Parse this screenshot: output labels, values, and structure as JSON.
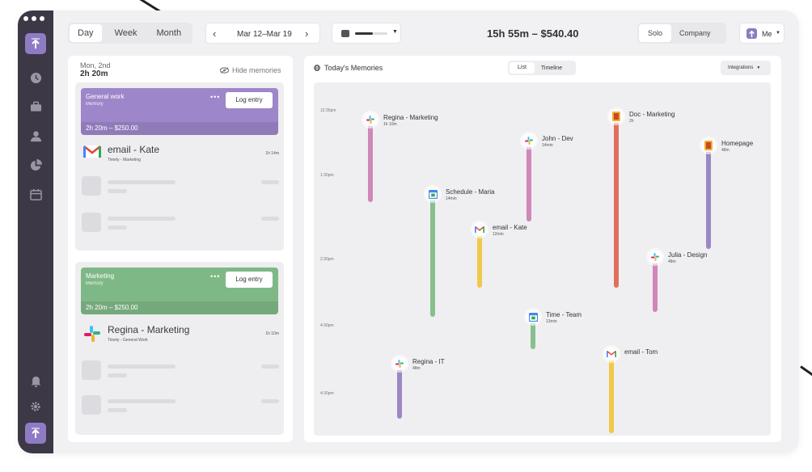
{
  "topbar": {
    "views": [
      "Day",
      "Week",
      "Month"
    ],
    "active_view": "Day",
    "date_range": "Mar 12–Mar 19",
    "total": "15h 55m – $540.40",
    "scope": [
      "Solo",
      "Company"
    ],
    "user_label": "Me"
  },
  "left": {
    "day": "Mon, 2nd",
    "day_total": "2h 20m",
    "hide_label": "Hide memories",
    "cards": [
      {
        "title": "General work",
        "subtitle": "Memory",
        "log_label": "Log entry",
        "total": "2h 20m – $250.00",
        "color": "#9d86c9",
        "entry_title": "email - Kate",
        "entry_sub": "Timely - Marketing",
        "entry_dur": "1h 14m",
        "entry_icon": "gmail-icon"
      },
      {
        "title": "Marketing",
        "subtitle": "Memory",
        "log_label": "Log entry",
        "total": "2h 20m – $250.00",
        "color": "#7fb887",
        "entry_title": "Regina - Marketing",
        "entry_sub": "Timely - General Work",
        "entry_dur": "1h 10m",
        "entry_icon": "slack-icon"
      }
    ]
  },
  "right": {
    "title": "Today's Memories",
    "tabs": [
      "List",
      "Timeline"
    ],
    "integrations": "Integrations",
    "time_labels": [
      "12:30pm",
      "1:30pm",
      "2:30pm",
      "4:30pm",
      "4:30pm"
    ],
    "events": [
      {
        "title": "Regina - Marketing",
        "dur": "1h 10m",
        "icon": "slack-icon",
        "color": "#cf88b8"
      },
      {
        "title": "Schedule - Maria",
        "dur": "14min",
        "icon": "calendar-icon",
        "color": "#86c08e"
      },
      {
        "title": "email - Kate",
        "dur": "12min",
        "icon": "gmail-icon",
        "color": "#f1c84a"
      },
      {
        "title": "John - Dev",
        "dur": "14min",
        "icon": "slack-icon",
        "color": "#cf88b8"
      },
      {
        "title": "Time - Team",
        "dur": "13min",
        "icon": "calendar-icon",
        "color": "#86c08e"
      },
      {
        "title": "Doc - Marketing",
        "dur": "2h",
        "icon": "doc-icon",
        "color": "#e0705d"
      },
      {
        "title": "email - Tom",
        "dur": "",
        "icon": "gmail-icon",
        "color": "#f1c84a"
      },
      {
        "title": "Julia - Design",
        "dur": "48m",
        "icon": "slack-icon",
        "color": "#cf88b8"
      },
      {
        "title": "Homepage",
        "dur": "48m",
        "icon": "doc-icon",
        "color": "#9b87c6"
      },
      {
        "title": "Regina - IT",
        "dur": "48m",
        "icon": "slack-icon",
        "color": "#9b87c6"
      }
    ]
  },
  "colors": {
    "sidebar": "#3c3846",
    "accent": "#8e7bc4"
  }
}
